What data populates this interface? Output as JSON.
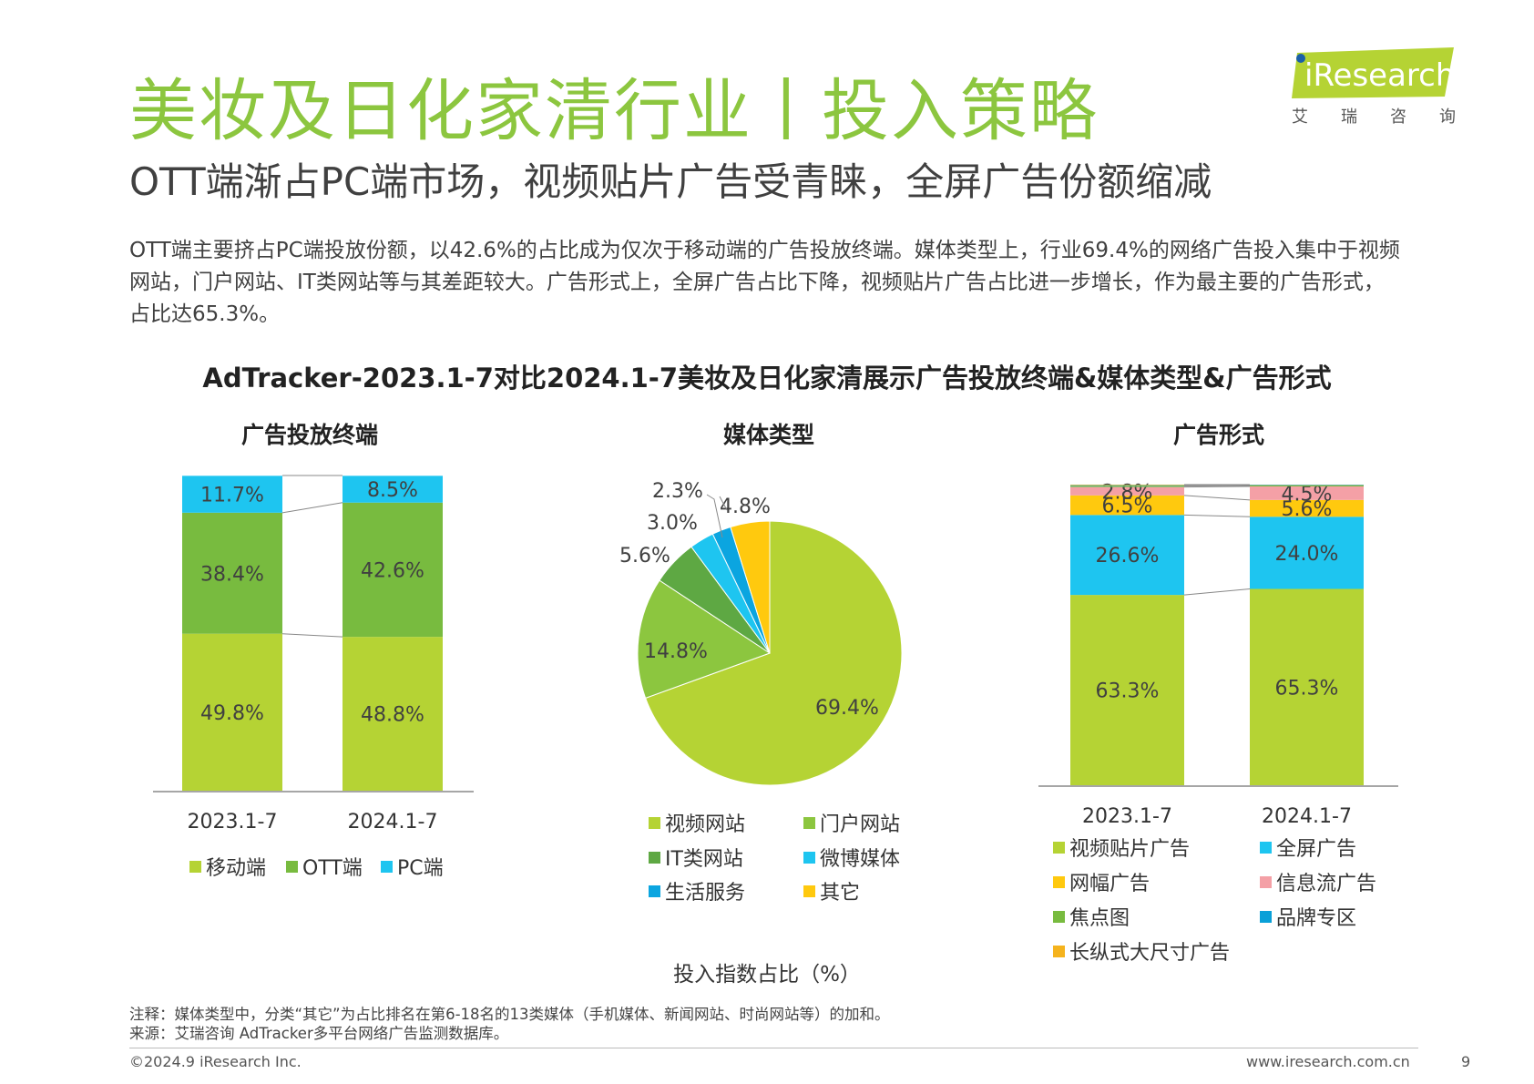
{
  "header": {
    "title": "美妆及日化家清行业丨投入策略",
    "subtitle": "OTT端渐占PC端市场，视频贴片广告受青睐，全屏广告份额缩减",
    "body": "OTT端主要挤占PC端投放份额，以42.6%的占比成为仅次于移动端的广告投放终端。媒体类型上，行业69.4%的网络广告投入集中于视频网站，门户网站、IT类网站等与其差距较大。广告形式上，全屏广告占比下降，视频贴片广告占比进一步增长，作为最主要的广告形式，占比达65.3%。"
  },
  "logo": {
    "text": "iResearch",
    "chars": [
      "艾",
      "瑞",
      "咨",
      "询"
    ],
    "green": "#b5d334"
  },
  "main_title": "AdTracker-2023.1-7对比2024.1-7美妆及日化家清展示广告投放终端&媒体类型&广告形式",
  "x_axis_caption": "投入指数占比（%）",
  "notes": {
    "note": "注释：媒体类型中，分类“其它”为占比排名在第6-18名的13类媒体（手机媒体、新闻网站、时尚网站等）的加和。",
    "source": "来源：艾瑞咨询 AdTracker多平台网络广告监测数据库。"
  },
  "footer": {
    "copyright": "©2024.9 iResearch Inc.",
    "url": "www.iresearch.com.cn",
    "page": "9"
  },
  "colors": {
    "title_green": "#8cc63f",
    "light_green": "#b5d334",
    "mid_green": "#78bb3f",
    "dark_green": "#5ea843",
    "cyan": "#1ec5f0",
    "blue": "#0ba5e0",
    "yellow": "#ffc90e",
    "pink": "#f4a0a6",
    "orange": "#f5b31d",
    "deep_blue": "#0aa0d8"
  },
  "chart_data": [
    {
      "type": "bar",
      "stacked": true,
      "title": "广告投放终端",
      "categories": [
        "2023.1-7",
        "2024.1-7"
      ],
      "series": [
        {
          "name": "移动端",
          "values": [
            49.8,
            48.8
          ],
          "color": "#b5d334",
          "labels": [
            "49.8%",
            "48.8%"
          ]
        },
        {
          "name": "OTT端",
          "values": [
            38.4,
            42.6
          ],
          "color": "#78bb3f",
          "labels": [
            "38.4%",
            "42.6%"
          ]
        },
        {
          "name": "PC端",
          "values": [
            11.7,
            8.5
          ],
          "color": "#1ec5f0",
          "labels": [
            "11.7%",
            "8.5%"
          ]
        }
      ],
      "ylim": [
        0,
        100
      ],
      "legend": "bottom"
    },
    {
      "type": "pie",
      "title": "媒体类型",
      "slices": [
        {
          "name": "视频网站",
          "value": 69.4,
          "label": "69.4%",
          "color": "#b5d334"
        },
        {
          "name": "门户网站",
          "value": 14.8,
          "label": "14.8%",
          "color": "#8cc63f"
        },
        {
          "name": "IT类网站",
          "value": 5.6,
          "label": "5.6%",
          "color": "#5ea843"
        },
        {
          "name": "微博媒体",
          "value": 3.0,
          "label": "3.0%",
          "color": "#1ec5f0"
        },
        {
          "name": "生活服务",
          "value": 2.3,
          "label": "2.3%",
          "color": "#0ba5e0"
        },
        {
          "name": "其它",
          "value": 4.8,
          "label": "4.8%",
          "color": "#ffc90e"
        }
      ],
      "legend": "bottom"
    },
    {
      "type": "bar",
      "stacked": true,
      "title": "广告形式",
      "categories": [
        "2023.1-7",
        "2024.1-7"
      ],
      "series": [
        {
          "name": "视频贴片广告",
          "values": [
            63.3,
            65.3
          ],
          "color": "#b5d334",
          "labels": [
            "63.3%",
            "65.3%"
          ]
        },
        {
          "name": "全屏广告",
          "values": [
            26.6,
            24.0
          ],
          "color": "#1ec5f0",
          "labels": [
            "26.6%",
            "24.0%"
          ]
        },
        {
          "name": "网幅广告",
          "values": [
            6.5,
            5.6
          ],
          "color": "#ffc90e",
          "labels": [
            "6.5%",
            "5.6%"
          ]
        },
        {
          "name": "信息流广告",
          "values": [
            2.8,
            4.5
          ],
          "color": "#f4a0a6",
          "labels": [
            "2.8%",
            "4.5%"
          ]
        },
        {
          "name": "焦点图",
          "values": [
            0.4,
            0.3
          ],
          "color": "#78bb3f",
          "labels": [
            "",
            ""
          ]
        },
        {
          "name": "品牌专区",
          "values": [
            0.2,
            0.2
          ],
          "color": "#0aa0d8",
          "labels": [
            "",
            ""
          ]
        },
        {
          "name": "长纵式大尺寸广告",
          "values": [
            0.2,
            0.1
          ],
          "color": "#f5b31d",
          "labels": [
            "",
            ""
          ]
        }
      ],
      "ylim": [
        0,
        100
      ],
      "legend": "bottom"
    }
  ]
}
